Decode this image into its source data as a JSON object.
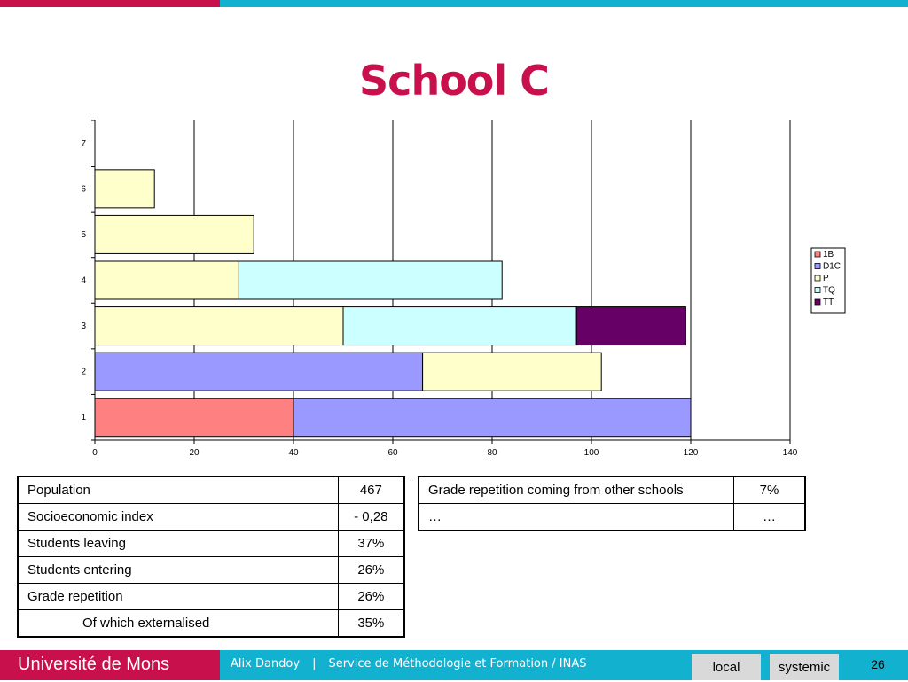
{
  "slide": {
    "title": "School C",
    "page_number": "26"
  },
  "footer": {
    "university": "Université de Mons",
    "author": "Alix Dandoy",
    "separator": "|",
    "service": "Service de Méthodologie et Formation / INAS",
    "local_label": "local",
    "systemic_label": "systemic"
  },
  "chart_data": {
    "type": "bar",
    "orientation": "horizontal",
    "stacked": true,
    "categories": [
      "1",
      "2",
      "3",
      "4",
      "5",
      "6",
      "7"
    ],
    "series": [
      {
        "name": "1B",
        "color": "#ff8080",
        "values": [
          40,
          0,
          0,
          0,
          0,
          0,
          0
        ]
      },
      {
        "name": "D1C",
        "color": "#9999ff",
        "values": [
          80,
          66,
          0,
          0,
          0,
          0,
          0
        ]
      },
      {
        "name": "P",
        "color": "#ffffcc",
        "values": [
          0,
          36,
          50,
          29,
          32,
          12,
          0
        ]
      },
      {
        "name": "TQ",
        "color": "#ccffff",
        "values": [
          0,
          0,
          47,
          53,
          0,
          0,
          0
        ]
      },
      {
        "name": "TT",
        "color": "#660066",
        "values": [
          0,
          0,
          22,
          0,
          0,
          0,
          0
        ]
      }
    ],
    "xlim": [
      0,
      140
    ],
    "x_ticks": [
      "0",
      "20",
      "40",
      "60",
      "80",
      "100",
      "120",
      "140"
    ],
    "grid": "vertical",
    "legend_position": "right"
  },
  "table_left": {
    "rows": [
      {
        "label": "Population",
        "value": "467"
      },
      {
        "label": "Socioeconomic index",
        "value": "- 0,28"
      },
      {
        "label": "Students leaving",
        "value": "37%"
      },
      {
        "label": "Students entering",
        "value": "26%"
      },
      {
        "label": "Grade repetition",
        "value": "26%"
      },
      {
        "label": "Of which externalised",
        "value": "35%"
      }
    ]
  },
  "table_right": {
    "rows": [
      {
        "label": "Grade repetition coming from other schools",
        "value": "7%"
      },
      {
        "label": "…",
        "value": "…"
      }
    ]
  }
}
